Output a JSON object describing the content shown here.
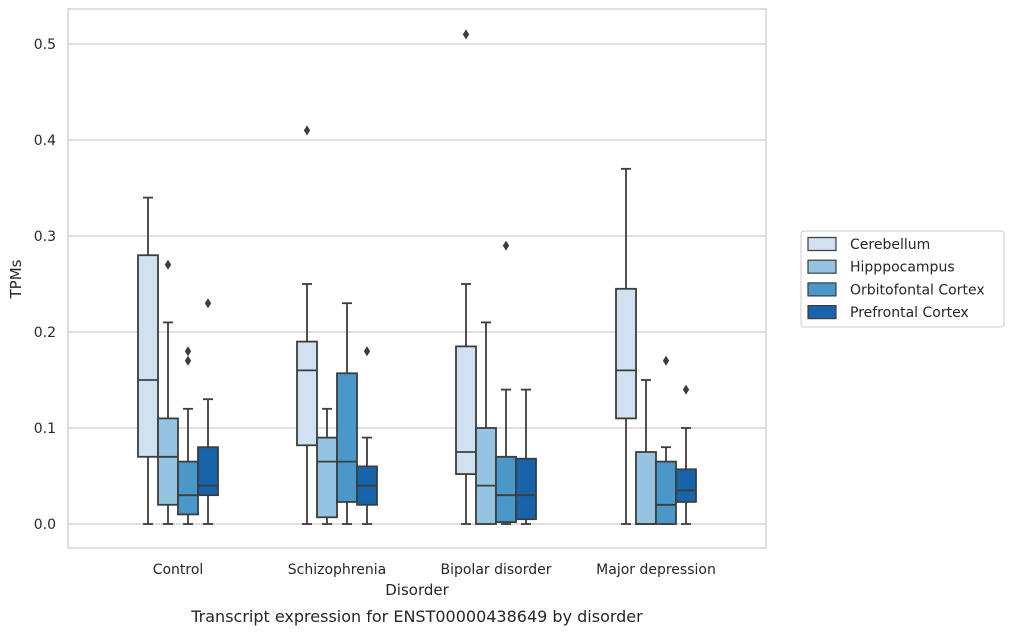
{
  "chart_data": {
    "type": "box",
    "caption": "Transcript expression for ENST00000438649 by disorder",
    "xlabel": "Disorder",
    "ylabel": "TPMs",
    "ylim": [
      -0.025,
      0.535
    ],
    "yticks": [
      0.0,
      0.1,
      0.2,
      0.3,
      0.4,
      0.5
    ],
    "ytick_labels": [
      "0.0",
      "0.1",
      "0.2",
      "0.3",
      "0.4",
      "0.5"
    ],
    "grid": "horizontal",
    "legend_placement": "right-outside",
    "categories": [
      "Control",
      "Schizophrenia",
      "Bipolar disorder",
      "Major depression"
    ],
    "series": [
      {
        "name": "Cerebellum",
        "color": "#d0e1f2",
        "boxes": [
          {
            "whisker_low": 0.0,
            "q1": 0.07,
            "median": 0.15,
            "q3": 0.28,
            "whisker_high": 0.34,
            "outliers": []
          },
          {
            "whisker_low": 0.0,
            "q1": 0.082,
            "median": 0.16,
            "q3": 0.19,
            "whisker_high": 0.25,
            "outliers": [
              0.41
            ]
          },
          {
            "whisker_low": 0.0,
            "q1": 0.052,
            "median": 0.075,
            "q3": 0.185,
            "whisker_high": 0.25,
            "outliers": [
              0.51
            ]
          },
          {
            "whisker_low": 0.0,
            "q1": 0.11,
            "median": 0.16,
            "q3": 0.245,
            "whisker_high": 0.37,
            "outliers": []
          }
        ]
      },
      {
        "name": "Hipppocampus",
        "color": "#94c4df",
        "boxes": [
          {
            "whisker_low": 0.0,
            "q1": 0.02,
            "median": 0.07,
            "q3": 0.11,
            "whisker_high": 0.21,
            "outliers": [
              0.27
            ]
          },
          {
            "whisker_low": 0.0,
            "q1": 0.007,
            "median": 0.065,
            "q3": 0.09,
            "whisker_high": 0.12,
            "outliers": []
          },
          {
            "whisker_low": 0.0,
            "q1": 0.0,
            "median": 0.04,
            "q3": 0.1,
            "whisker_high": 0.21,
            "outliers": []
          },
          {
            "whisker_low": 0.0,
            "q1": 0.0,
            "median": 0.0,
            "q3": 0.075,
            "whisker_high": 0.15,
            "outliers": []
          }
        ]
      },
      {
        "name": "Orbitofontal Cortex",
        "color": "#4a98c9",
        "boxes": [
          {
            "whisker_low": 0.0,
            "q1": 0.01,
            "median": 0.03,
            "q3": 0.065,
            "whisker_high": 0.12,
            "outliers": [
              0.17,
              0.18
            ]
          },
          {
            "whisker_low": 0.0,
            "q1": 0.023,
            "median": 0.065,
            "q3": 0.157,
            "whisker_high": 0.23,
            "outliers": []
          },
          {
            "whisker_low": 0.0,
            "q1": 0.002,
            "median": 0.03,
            "q3": 0.07,
            "whisker_high": 0.14,
            "outliers": [
              0.29
            ]
          },
          {
            "whisker_low": 0.0,
            "q1": 0.0,
            "median": 0.02,
            "q3": 0.065,
            "whisker_high": 0.08,
            "outliers": [
              0.17
            ]
          }
        ]
      },
      {
        "name": "Prefrontal Cortex",
        "color": "#1764ab",
        "boxes": [
          {
            "whisker_low": 0.0,
            "q1": 0.03,
            "median": 0.04,
            "q3": 0.08,
            "whisker_high": 0.13,
            "outliers": [
              0.23
            ]
          },
          {
            "whisker_low": 0.0,
            "q1": 0.02,
            "median": 0.04,
            "q3": 0.06,
            "whisker_high": 0.09,
            "outliers": [
              0.18
            ]
          },
          {
            "whisker_low": 0.0,
            "q1": 0.005,
            "median": 0.03,
            "q3": 0.068,
            "whisker_high": 0.14,
            "outliers": []
          },
          {
            "whisker_low": 0.0,
            "q1": 0.023,
            "median": 0.035,
            "q3": 0.057,
            "whisker_high": 0.1,
            "outliers": [
              0.14
            ]
          }
        ]
      }
    ]
  }
}
